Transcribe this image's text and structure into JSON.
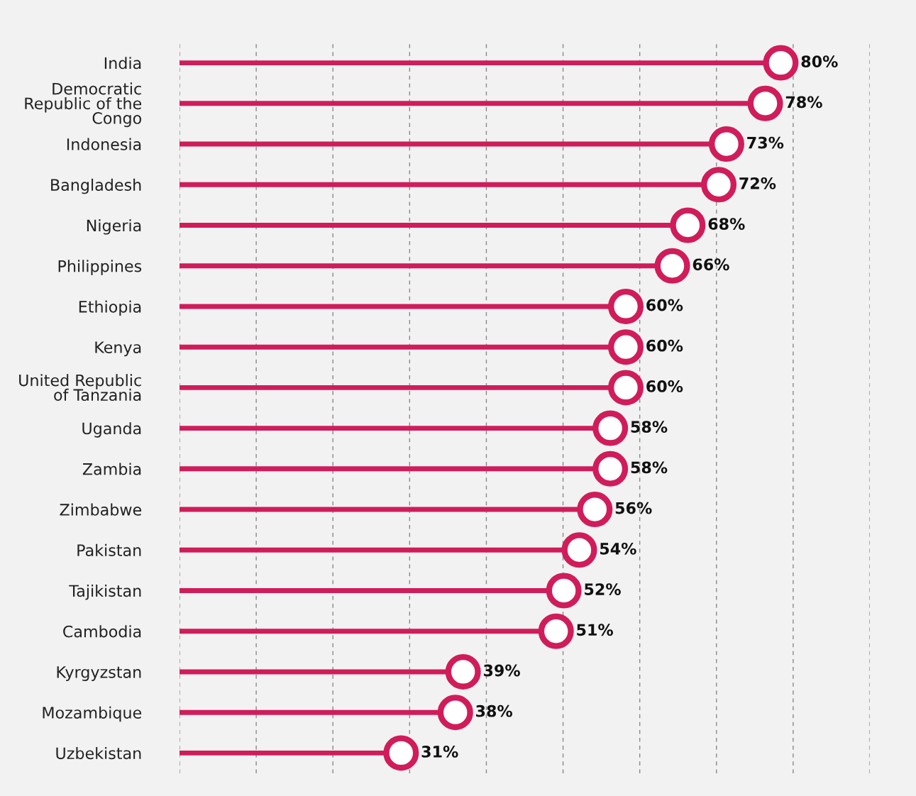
{
  "chart_data": {
    "type": "lollipop",
    "orientation": "horizontal",
    "categories": [
      "India",
      "Democratic\nRepublic of the\nCongo",
      "Indonesia",
      "Bangladesh",
      "Nigeria",
      "Philippines",
      "Ethiopia",
      "Kenya",
      "United Republic\nof Tanzania",
      "Uganda",
      "Zambia",
      "Zimbabwe",
      "Pakistan",
      "Tajikistan",
      "Cambodia",
      "Kyrgyzstan",
      "Mozambique",
      "Uzbekistan"
    ],
    "values": [
      80,
      78,
      73,
      72,
      68,
      66,
      60,
      60,
      60,
      58,
      58,
      56,
      54,
      52,
      51,
      39,
      38,
      31
    ],
    "value_labels": [
      "80%",
      "78%",
      "73%",
      "72%",
      "68%",
      "66%",
      "60%",
      "60%",
      "60%",
      "58%",
      "58%",
      "56%",
      "54%",
      "52%",
      "51%",
      "39%",
      "38%",
      "31%"
    ],
    "color": "#d01c5b",
    "xlim": [
      2.4,
      91.5
    ],
    "xticks": [
      {
        "value": 2.4,
        "label": null
      },
      {
        "value": 12.3,
        "label": null
      },
      {
        "value": 22.2,
        "label": null
      },
      {
        "value": 32.1,
        "label": null
      },
      {
        "value": 42.0,
        "label": null
      },
      {
        "value": 51.9,
        "label": null
      },
      {
        "value": 61.8,
        "label": null
      },
      {
        "value": 71.7,
        "label": null
      },
      {
        "value": 81.6,
        "label": null
      },
      {
        "value": 91.5,
        "label": null
      }
    ],
    "grid": "x",
    "tick_labels": "y",
    "marker": "circle",
    "legend": false
  }
}
